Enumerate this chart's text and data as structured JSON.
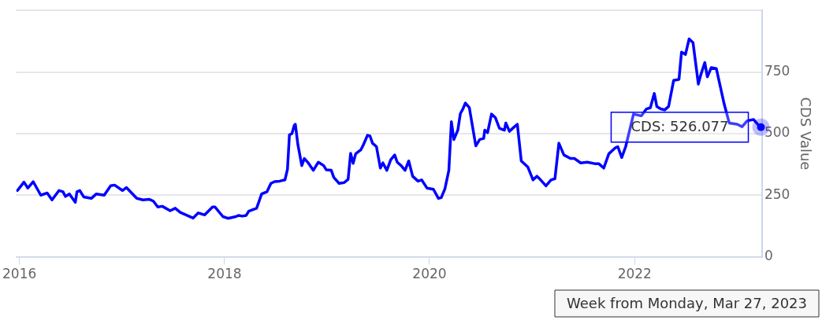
{
  "chart_data": {
    "type": "line",
    "ylabel": "CDS Value",
    "xlim": [
      "2015-12-20",
      "2023-03-31"
    ],
    "xticks": [
      "2016",
      "2018",
      "2020",
      "2022"
    ],
    "ylim": [
      0,
      1000
    ],
    "yticks": [
      0,
      250,
      500,
      750,
      {
        "value": 1000,
        "label": null
      }
    ],
    "grid": "y",
    "marker": "none",
    "line_style": "solid",
    "series": [
      {
        "color": "#0000ff",
        "x": [
          "2015-12-25",
          "2016-01-17",
          "2016-01-31",
          "2016-02-19",
          "2016-03-17",
          "2016-04-09",
          "2016-04-26",
          "2016-05-21",
          "2016-06-04",
          "2016-06-13",
          "2016-06-27",
          "2016-07-18",
          "2016-07-24",
          "2016-08-03",
          "2016-08-17",
          "2016-09-13",
          "2016-10-01",
          "2016-10-29",
          "2016-11-21",
          "2016-12-05",
          "2017-01-02",
          "2017-01-16",
          "2017-02-22",
          "2017-03-16",
          "2017-04-08",
          "2017-04-22",
          "2017-05-08",
          "2017-05-24",
          "2017-06-21",
          "2017-07-09",
          "2017-07-27",
          "2017-09-11",
          "2017-09-29",
          "2017-10-22",
          "2017-11-19",
          "2017-11-28",
          "2017-12-26",
          "2018-01-13",
          "2018-02-10",
          "2018-02-19",
          "2018-03-05",
          "2018-03-19",
          "2018-03-28",
          "2018-04-25",
          "2018-05-13",
          "2018-06-01",
          "2018-06-15",
          "2018-06-28",
          "2018-07-16",
          "2018-08-04",
          "2018-08-13",
          "2018-08-20",
          "2018-08-29",
          "2018-09-06",
          "2018-09-10",
          "2018-09-19",
          "2018-10-03",
          "2018-10-12",
          "2018-10-26",
          "2018-11-13",
          "2018-12-01",
          "2018-12-20",
          "2018-12-29",
          "2019-01-16",
          "2019-01-25",
          "2019-02-13",
          "2019-03-03",
          "2019-03-17",
          "2019-03-26",
          "2019-04-04",
          "2019-04-13",
          "2019-05-02",
          "2019-05-11",
          "2019-05-25",
          "2019-06-03",
          "2019-06-12",
          "2019-06-26",
          "2019-07-10",
          "2019-07-19",
          "2019-08-02",
          "2019-08-16",
          "2019-08-30",
          "2019-09-08",
          "2019-09-22",
          "2019-10-06",
          "2019-10-19",
          "2019-11-02",
          "2019-11-21",
          "2019-12-04",
          "2019-12-23",
          "2020-01-15",
          "2020-02-02",
          "2020-02-12",
          "2020-02-25",
          "2020-03-10",
          "2020-03-19",
          "2020-03-28",
          "2020-04-11",
          "2020-04-20",
          "2020-04-29",
          "2020-05-08",
          "2020-05-22",
          "2020-06-14",
          "2020-06-28",
          "2020-07-12",
          "2020-07-16",
          "2020-07-26",
          "2020-08-09",
          "2020-08-23",
          "2020-09-06",
          "2020-09-24",
          "2020-09-29",
          "2020-10-12",
          "2020-10-26",
          "2020-11-09",
          "2020-11-23",
          "2020-12-16",
          "2021-01-04",
          "2021-01-18",
          "2021-01-31",
          "2021-02-19",
          "2021-03-09",
          "2021-03-23",
          "2021-04-06",
          "2021-04-24",
          "2021-05-17",
          "2021-05-31",
          "2021-06-23",
          "2021-07-16",
          "2021-08-12",
          "2021-08-26",
          "2021-09-13",
          "2021-10-01",
          "2021-10-24",
          "2021-11-02",
          "2021-11-16",
          "2021-11-30",
          "2021-12-28",
          "2022-01-25",
          "2022-02-12",
          "2022-02-26",
          "2022-03-12",
          "2022-03-21",
          "2022-04-04",
          "2022-04-18",
          "2022-05-02",
          "2022-05-20",
          "2022-06-08",
          "2022-06-17",
          "2022-07-01",
          "2022-07-14",
          "2022-07-28",
          "2022-08-16",
          "2022-08-25",
          "2022-09-08",
          "2022-09-17",
          "2022-10-01",
          "2022-10-19",
          "2022-11-16",
          "2022-12-04",
          "2023-01-01",
          "2023-01-19",
          "2023-02-06",
          "2023-03-01",
          "2023-03-15",
          "2023-03-27"
        ],
        "values": [
          269,
          303,
          279,
          305,
          250,
          259,
          231,
          269,
          264,
          245,
          255,
          221,
          264,
          269,
          243,
          237,
          255,
          250,
          288,
          291,
          269,
          281,
          237,
          231,
          233,
          226,
          202,
          205,
          187,
          197,
          180,
          157,
          178,
          170,
          202,
          202,
          163,
          156,
          163,
          168,
          165,
          168,
          185,
          197,
          255,
          264,
          298,
          305,
          307,
          312,
          355,
          495,
          500,
          533,
          538,
          456,
          370,
          399,
          381,
          351,
          384,
          370,
          353,
          351,
          322,
          298,
          301,
          314,
          420,
          379,
          418,
          435,
          456,
          493,
          490,
          461,
          447,
          360,
          381,
          351,
          394,
          413,
          384,
          370,
          351,
          389,
          327,
          307,
          312,
          279,
          274,
          237,
          240,
          276,
          351,
          548,
          476,
          514,
          581,
          600,
          624,
          605,
          450,
          476,
          480,
          514,
          504,
          579,
          564,
          522,
          514,
          543,
          509,
          524,
          538,
          389,
          365,
          312,
          327,
          312,
          288,
          312,
          317,
          461,
          413,
          399,
          399,
          381,
          384,
          378,
          378,
          360,
          418,
          442,
          447,
          403,
          447,
          579,
          572,
          600,
          605,
          663,
          610,
          600,
          596,
          610,
          716,
          720,
          831,
          821,
          884,
          869,
          701,
          740,
          788,
          730,
          768,
          764,
          620,
          543,
          538,
          528,
          552,
          557,
          538,
          526.077
        ]
      }
    ],
    "annotations": [
      {
        "text": "CDS: 526.077",
        "x": "2023-03-27",
        "y": 526.077
      },
      "Week from Monday, Mar 27, 2023"
    ]
  }
}
